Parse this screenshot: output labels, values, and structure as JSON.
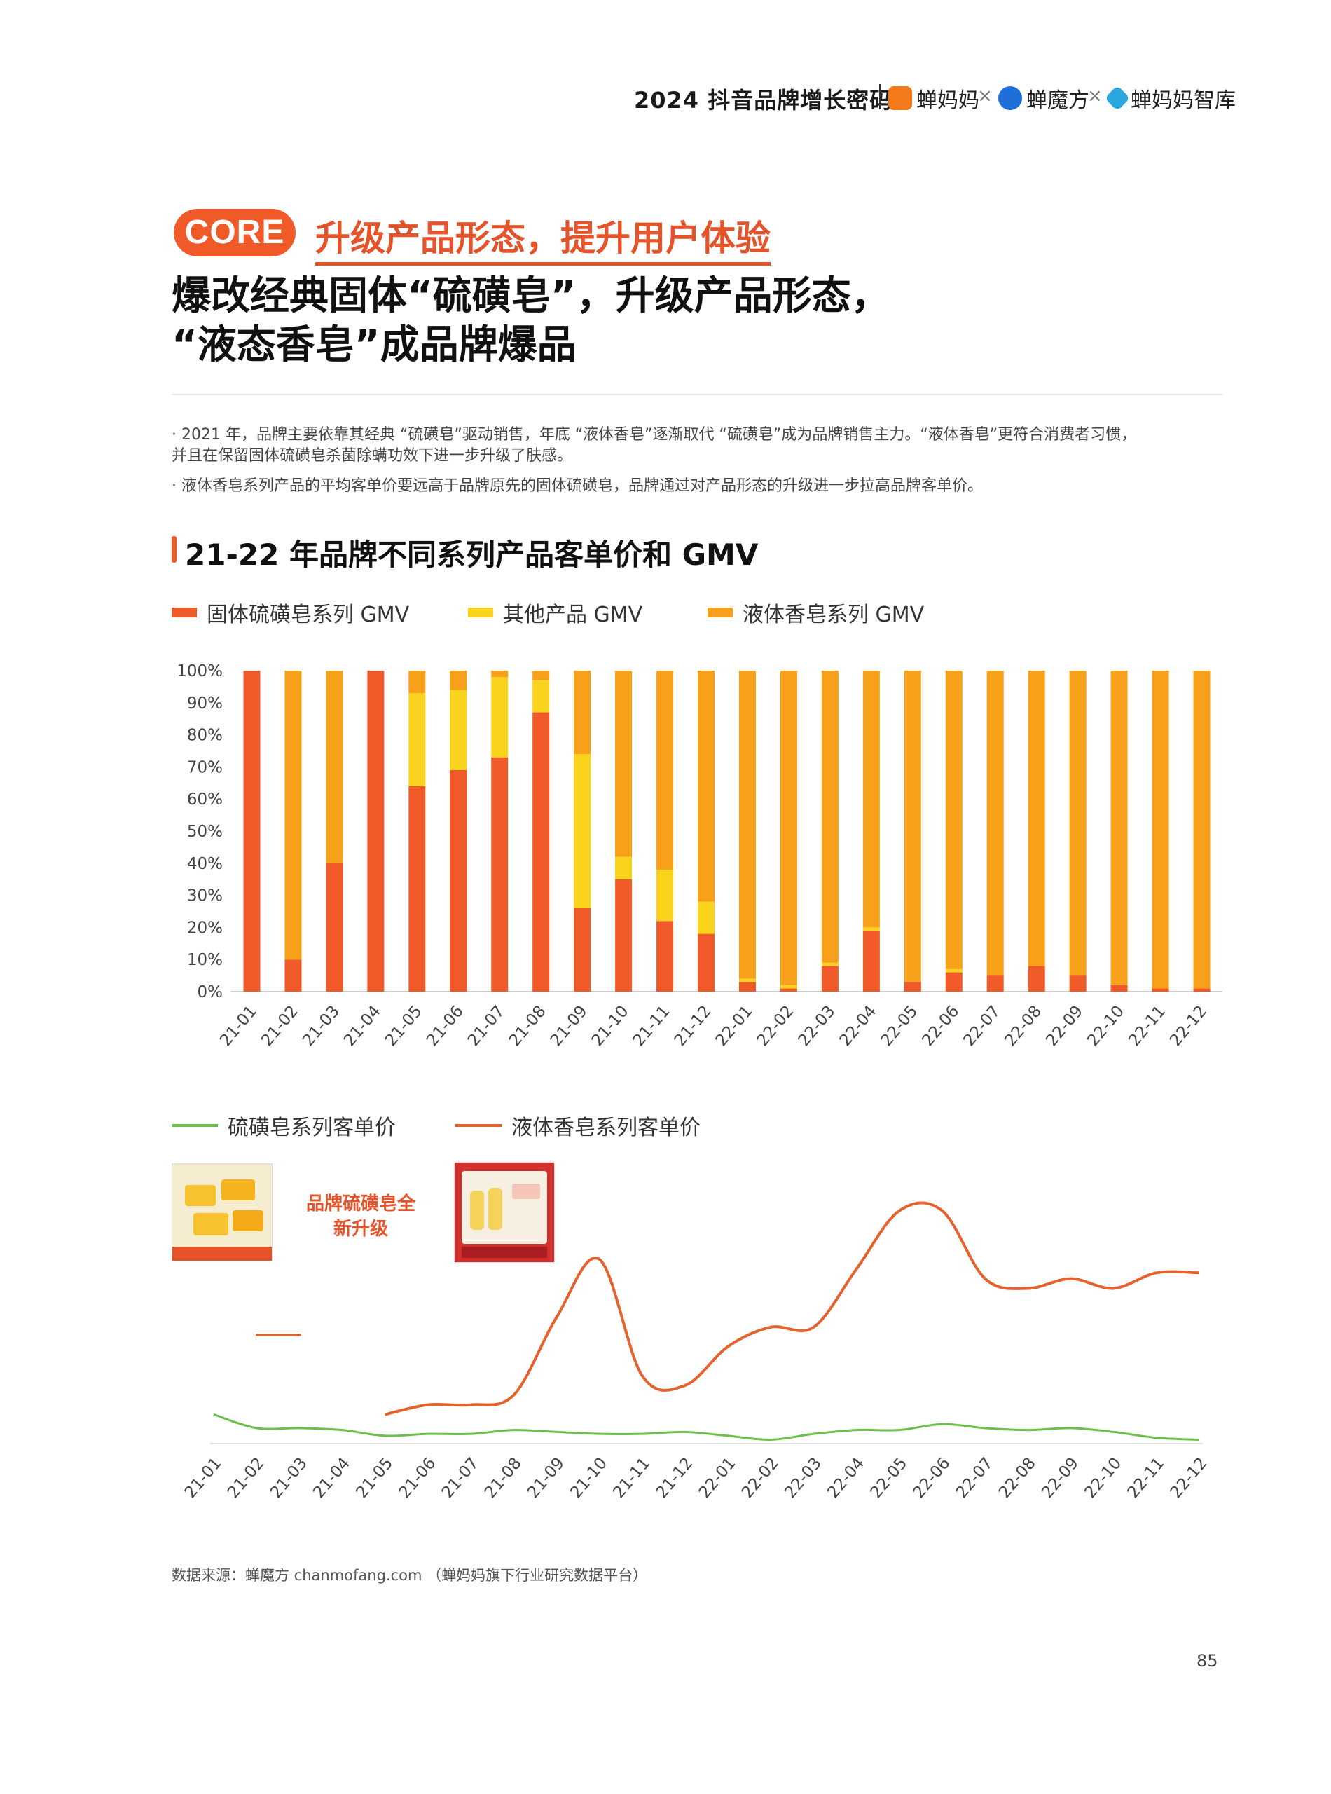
{
  "header": {
    "report_title": "2024 抖音品牌增长密码",
    "brands": [
      "蝉妈妈",
      "蝉魔方",
      "蝉妈妈智库"
    ],
    "separator": "×"
  },
  "core": {
    "pill": "CORE",
    "subtitle": "升级产品形态，提升用户体验"
  },
  "title_lines": [
    "爆改经典固体“硫磺皂”，升级产品形态，",
    "“液态香皂”成品牌爆品"
  ],
  "bullets": [
    "· 2021 年，品牌主要依靠其经典 “硫磺皂”驱动销售，年底 “液体香皂”逐渐取代 “硫磺皂”成为品牌销售主力。“液体香皂”更符合消费者习惯，",
    "并且在保留固体硫磺皂杀菌除螨功效下进一步升级了肤感。",
    "· 液体香皂系列产品的平均客单价要远高于品牌原先的固体硫磺皂，品牌通过对产品形态的升级进一步拉高品牌客单价。"
  ],
  "section_title": "21-22 年品牌不同系列产品客单价和 GMV",
  "colors": {
    "solid": "#f05a28",
    "other": "#f9d31c",
    "liquid": "#f9a01b",
    "line_sulfur": "#6cbf4a",
    "line_liquid": "#e5622e",
    "accent": "#e5532a"
  },
  "chart_data": [
    {
      "type": "bar",
      "stacked": true,
      "categories": [
        "21-01",
        "21-02",
        "21-03",
        "21-04",
        "21-05",
        "21-06",
        "21-07",
        "21-08",
        "21-09",
        "21-10",
        "21-11",
        "21-12",
        "22-01",
        "22-02",
        "22-03",
        "22-04",
        "22-05",
        "22-06",
        "22-07",
        "22-08",
        "22-09",
        "22-10",
        "22-11",
        "22-12"
      ],
      "series": [
        {
          "name": "固体硫磺皂系列 GMV",
          "values": [
            100,
            10,
            40,
            100,
            64,
            69,
            73,
            87,
            26,
            35,
            22,
            18,
            3,
            1,
            8,
            19,
            3,
            6,
            5,
            8,
            5,
            2,
            1,
            1
          ]
        },
        {
          "name": "其他产品 GMV",
          "values": [
            0,
            0,
            0,
            0,
            29,
            25,
            25,
            10,
            48,
            7,
            16,
            10,
            1,
            1,
            1,
            1,
            0,
            1,
            0,
            0,
            0,
            0,
            0,
            0
          ]
        },
        {
          "name": "液体香皂系列 GMV",
          "values": [
            0,
            90,
            60,
            0,
            7,
            6,
            2,
            3,
            26,
            58,
            62,
            72,
            96,
            98,
            91,
            80,
            97,
            93,
            95,
            92,
            95,
            98,
            99,
            99
          ]
        }
      ],
      "yticks": [
        "0%",
        "10%",
        "20%",
        "30%",
        "40%",
        "50%",
        "60%",
        "70%",
        "80%",
        "90%",
        "100%"
      ],
      "ylim": [
        0,
        100
      ]
    },
    {
      "type": "line",
      "categories": [
        "21-01",
        "21-02",
        "21-03",
        "21-04",
        "21-05",
        "21-06",
        "21-07",
        "21-08",
        "21-09",
        "21-10",
        "21-11",
        "21-12",
        "22-01",
        "22-02",
        "22-03",
        "22-04",
        "22-05",
        "22-06",
        "22-07",
        "22-08",
        "22-09",
        "22-10",
        "22-11",
        "22-12"
      ],
      "series": [
        {
          "name": "硫磺皂系列客单价",
          "values": [
            15,
            8,
            8,
            7,
            4,
            5,
            5,
            7,
            6,
            5,
            5,
            6,
            4,
            2,
            5,
            7,
            7,
            10,
            8,
            7,
            8,
            6,
            3,
            2
          ]
        },
        {
          "name": "液体香皂系列客单价",
          "values": [
            null,
            null,
            null,
            null,
            15,
            20,
            20,
            25,
            65,
            95,
            35,
            30,
            50,
            60,
            60,
            90,
            120,
            120,
            85,
            80,
            85,
            80,
            88,
            88
          ]
        }
      ],
      "annotation": "品牌硫磺皂全新升级"
    }
  ],
  "source": "数据来源：蝉魔方 chanmofang.com （蝉妈妈旗下行业研究数据平台）",
  "page_number": "85"
}
